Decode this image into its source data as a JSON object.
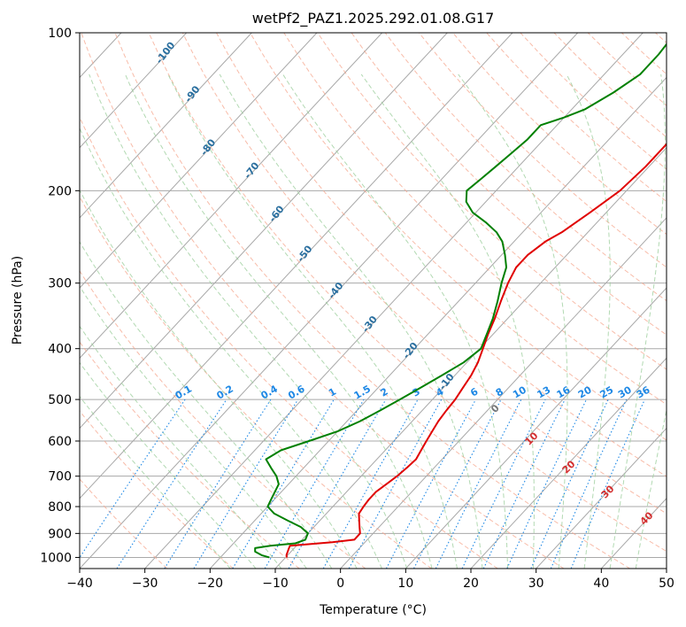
{
  "chart_data": {
    "type": "line",
    "subtype": "skew-t log-p diagram",
    "title": "wetPf2_PAZ1.2025.292.01.08.G17",
    "xlabel": "Temperature (°C)",
    "ylabel": "Pressure (hPa)",
    "xlim": [
      -40,
      50
    ],
    "ylim": [
      1050,
      100
    ],
    "y_scale": "log",
    "x_ticks": [
      -40,
      -30,
      -20,
      -10,
      0,
      10,
      20,
      30,
      40,
      50
    ],
    "y_ticks": [
      100,
      200,
      300,
      400,
      500,
      600,
      700,
      800,
      900,
      1000
    ],
    "grid": true,
    "legend": "none",
    "colors": {
      "temperature": "#e00000",
      "dewpoint": "#008000",
      "isotherm": "#a8a8a8",
      "dry_adiabat": "#f5a58c",
      "moist_adiabat": "#9fd09f",
      "mixing_ratio": "#1e88e5",
      "isotherm_label": "#2a6f9f",
      "mixing_label": "#1e88e5",
      "moist_label": "#d32f2f"
    },
    "series": [
      {
        "key": "temperature",
        "pressure": [
          1000,
          990,
          975,
          960,
          950,
          935,
          925,
          900,
          875,
          850,
          825,
          800,
          775,
          750,
          725,
          700,
          675,
          650,
          625,
          600,
          575,
          550,
          525,
          500,
          475,
          450,
          425,
          400,
          375,
          350,
          325,
          300,
          280,
          265,
          250,
          240,
          220,
          200,
          180,
          160,
          140,
          120,
          110,
          100
        ],
        "values": [
          -9.8,
          -10.2,
          -10.5,
          -10.8,
          -11,
          -5,
          -2,
          -2,
          -3,
          -4,
          -5,
          -5.3,
          -5.5,
          -5.5,
          -5,
          -4.5,
          -4.2,
          -4,
          -4.5,
          -5,
          -5.5,
          -6,
          -6.3,
          -6.5,
          -7,
          -7.5,
          -8.3,
          -9.5,
          -10.8,
          -12,
          -13.5,
          -15,
          -16,
          -16,
          -15.2,
          -14,
          -12.5,
          -11,
          -10.5,
          -10.5,
          -12.5,
          -15,
          -17.5,
          -21
        ]
      },
      {
        "key": "dewpoint",
        "pressure": [
          1000,
          990,
          975,
          960,
          950,
          940,
          925,
          900,
          875,
          850,
          825,
          800,
          775,
          750,
          725,
          700,
          675,
          650,
          625,
          600,
          575,
          550,
          525,
          500,
          475,
          450,
          425,
          400,
          375,
          350,
          325,
          300,
          280,
          265,
          250,
          240,
          230,
          220,
          210,
          200,
          190,
          180,
          170,
          160,
          150,
          145,
          140,
          130,
          120,
          110,
          100
        ],
        "values": [
          -12.5,
          -14,
          -15.5,
          -16,
          -14,
          -10.5,
          -9.5,
          -10,
          -12,
          -15,
          -18,
          -20,
          -20.5,
          -21,
          -21.5,
          -23,
          -25,
          -27,
          -26,
          -23,
          -20,
          -18,
          -16.5,
          -15,
          -13.5,
          -12,
          -10.5,
          -9.8,
          -11,
          -12.3,
          -14,
          -16,
          -17.5,
          -19.5,
          -21.8,
          -24,
          -27,
          -30.5,
          -33,
          -34.5,
          -34,
          -33.5,
          -33,
          -32.5,
          -32.5,
          -30,
          -28,
          -26,
          -24.5,
          -24.5,
          -25
        ]
      }
    ],
    "isotherm_labels": [
      "-100",
      "-90",
      "-80",
      "-70",
      "-60",
      "-50",
      "-40",
      "-30",
      "-20",
      "-10"
    ],
    "mixing_ratio_values": [
      0.1,
      0.2,
      0.4,
      0.6,
      1,
      1.5,
      2,
      3,
      4,
      6,
      8,
      10,
      13,
      16,
      20,
      25,
      30,
      36
    ],
    "mixing_ratio_labels": [
      "0.1",
      "0.2",
      "0.4",
      "0.6",
      "1",
      "1.5",
      "2",
      "3",
      "4",
      "6",
      "8",
      "10",
      "13",
      "16",
      "20",
      "25",
      "30",
      "36"
    ],
    "moist_adiabat_labels": [
      "0",
      "10",
      "20",
      "30",
      "40"
    ]
  }
}
